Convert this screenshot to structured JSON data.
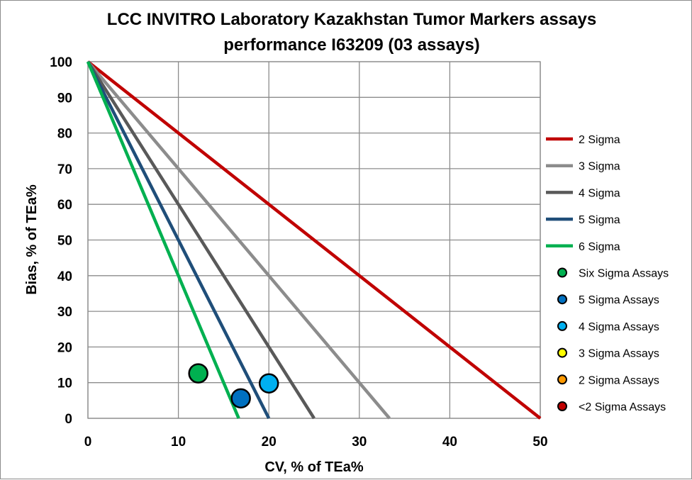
{
  "chart_data": {
    "type": "scatter",
    "title_line1": "LCC INVITRO Laboratory Kazakhstan Tumor Markers assays",
    "title_line2": "performance I63209 (03 assays)",
    "xlabel": "CV, % of TEa%",
    "ylabel": "Bias, % of TEa%",
    "xlim": [
      0,
      50
    ],
    "ylim": [
      0,
      100
    ],
    "x_ticks": [
      0,
      10,
      20,
      30,
      40,
      50
    ],
    "y_ticks": [
      0,
      10,
      20,
      30,
      40,
      50,
      60,
      70,
      80,
      90,
      100
    ],
    "grid": true,
    "legend_position": "right",
    "sigma_lines": [
      {
        "name": "2 Sigma",
        "sigma": 2,
        "color": "#c00000"
      },
      {
        "name": "3 Sigma",
        "sigma": 3,
        "color": "#8c8c8c"
      },
      {
        "name": "4 Sigma",
        "sigma": 4,
        "color": "#595959"
      },
      {
        "name": "5 Sigma",
        "sigma": 5,
        "color": "#1f4e79"
      },
      {
        "name": "6 Sigma",
        "sigma": 6,
        "color": "#00b050"
      }
    ],
    "assay_categories": [
      {
        "name": "Six Sigma Assays",
        "color": "#00b050"
      },
      {
        "name": "5 Sigma Assays",
        "color": "#0070c0"
      },
      {
        "name": "4 Sigma Assays",
        "color": "#00b0f0"
      },
      {
        "name": "3 Sigma Assays",
        "color": "#ffff00"
      },
      {
        "name": "2 Sigma Assays",
        "color": "#ff9900"
      },
      {
        "name": "<2 Sigma Assays",
        "color": "#c00000"
      }
    ],
    "points": [
      {
        "category": "Six Sigma Assays",
        "x": 12.2,
        "y": 12.6
      },
      {
        "category": "5 Sigma Assays",
        "x": 16.9,
        "y": 5.6
      },
      {
        "category": "4 Sigma Assays",
        "x": 20.0,
        "y": 9.8
      }
    ]
  }
}
